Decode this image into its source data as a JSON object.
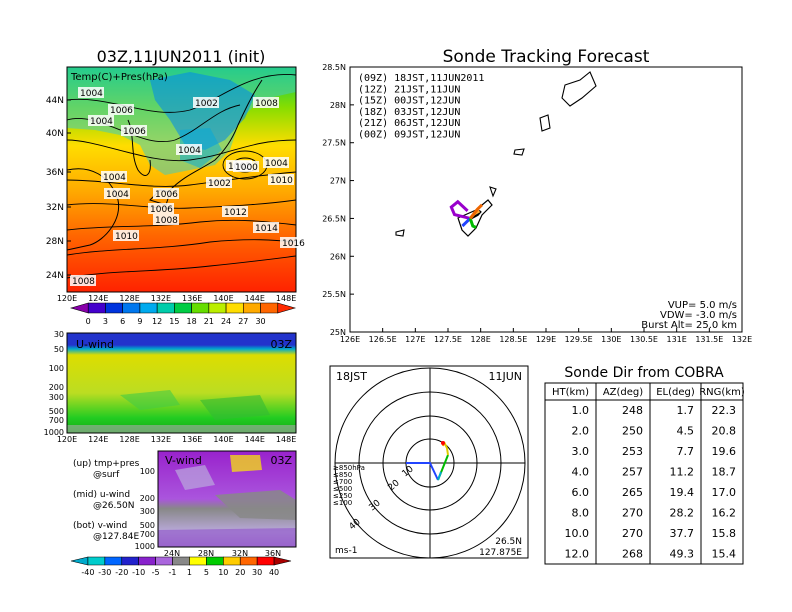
{
  "left": {
    "title": "03Z,11JUN2011 (init)",
    "top_panel": {
      "label": "Temp(C)+Pres(hPa)",
      "lat_ticks": [
        "44N",
        "40N",
        "36N",
        "32N",
        "28N",
        "24N"
      ],
      "lon_ticks": [
        "120E",
        "124E",
        "128E",
        "132E",
        "136E",
        "140E",
        "144E",
        "148E"
      ],
      "isobar_labels": [
        "1004",
        "1004",
        "1006",
        "1006",
        "1002",
        "1008",
        "1004",
        "1006",
        "1004",
        "1002",
        "1000",
        "1004",
        "1002",
        "1010",
        "1004",
        "1006",
        "1008",
        "1012",
        "1010",
        "1014",
        "1016",
        "1008"
      ],
      "colorbar_ticks": [
        "0",
        "3",
        "6",
        "9",
        "12",
        "15",
        "18",
        "21",
        "24",
        "27",
        "30"
      ],
      "colors": [
        "#8800aa",
        "#4400cc",
        "#0033dd",
        "#0077ee",
        "#00aaee",
        "#00ccaa",
        "#00cc44",
        "#66dd00",
        "#bbee00",
        "#ffdd00",
        "#ffaa00",
        "#ff6600",
        "#ff2a00"
      ]
    },
    "u_panel": {
      "label": "U-wind",
      "time": "03Z",
      "p_ticks": [
        "30",
        "50",
        "100",
        "200",
        "300",
        "500",
        "700",
        "1000"
      ],
      "lon_ticks": [
        "120E",
        "124E",
        "128E",
        "132E",
        "136E",
        "140E",
        "144E",
        "148E"
      ]
    },
    "v_panel": {
      "label": "V-wind",
      "time": "03Z",
      "p_ticks": [
        "100",
        "200",
        "300",
        "500",
        "700",
        "1000"
      ],
      "lat_ticks": [
        "24N",
        "28N",
        "32N",
        "36N"
      ]
    },
    "notes": [
      {
        "a": "(up) tmp+pres",
        "b": "@surf"
      },
      {
        "a": "(mid) u-wind",
        "b": "@26.50N"
      },
      {
        "a": "(bot) v-wind",
        "b": "@127.84E"
      }
    ],
    "wind_colorbar_ticks": [
      "-40",
      "-30",
      "-20",
      "-10",
      "-5",
      "-1",
      "1",
      "5",
      "10",
      "20",
      "30",
      "40"
    ],
    "wind_colors": [
      "#00aacc",
      "#00cccc",
      "#0066ff",
      "#2222cc",
      "#8822cc",
      "#aa66dd",
      "#888888",
      "#ffff00",
      "#00cc00",
      "#ffcc00",
      "#ff6600",
      "#ff0000",
      "#aa0000"
    ]
  },
  "track": {
    "title": "Sonde Tracking Forecast",
    "lat_ticks": [
      "28.5N",
      "28N",
      "27.5N",
      "27N",
      "26.5N",
      "26N",
      "25.5N",
      "25N"
    ],
    "lon_ticks": [
      "126E",
      "126.5E",
      "127E",
      "127.5E",
      "128E",
      "128.5E",
      "129E",
      "129.5E",
      "130E",
      "130.5E",
      "131E",
      "131.5E",
      "132E"
    ],
    "legend": [
      {
        "text": "(09Z)  18JST,11JUN2011",
        "color": "#000000"
      },
      {
        "text": "(12Z)  21JST,11JUN",
        "color": "#9900cc"
      },
      {
        "text": "(15Z)  00JST,12JUN",
        "color": "#2244ff"
      },
      {
        "text": "(18Z)  03JST,12JUN",
        "color": "#00bb00"
      },
      {
        "text": "(21Z)  06JST,12JUN",
        "color": "#ffaa33"
      },
      {
        "text": "(00Z)  09JST,12JUN",
        "color": "#ee6600"
      }
    ],
    "params": [
      "VUP=  5.0  m/s",
      "VDW= -3.0  m/s",
      "Burst Alt=  25.0  km"
    ]
  },
  "radar": {
    "time": "18JST",
    "date": "11JUN",
    "range_labels": [
      "10",
      "20",
      "30",
      "40"
    ],
    "levels": [
      {
        "text": "≥850hPa",
        "color": "#ff0000"
      },
      {
        "text": "≤850",
        "color": "#ff8800"
      },
      {
        "text": "≤700",
        "color": "#ddcc00"
      },
      {
        "text": "≤500",
        "color": "#00bb00"
      },
      {
        "text": "≤250",
        "color": "#00aacc"
      },
      {
        "text": "≤100",
        "color": "#2244ff"
      }
    ],
    "unit": "ms-1",
    "loc_lat": "26.5N",
    "loc_lon": "127.875E"
  },
  "table": {
    "title": "Sonde Dir from COBRA",
    "headers": [
      "HT(km)",
      "AZ(deg)",
      "EL(deg)",
      "RNG(km)"
    ],
    "rows": [
      [
        "1.0",
        "248",
        "1.7",
        "22.3"
      ],
      [
        "2.0",
        "250",
        "4.5",
        "20.8"
      ],
      [
        "3.0",
        "253",
        "7.7",
        "19.6"
      ],
      [
        "4.0",
        "257",
        "11.2",
        "18.7"
      ],
      [
        "6.0",
        "265",
        "19.4",
        "17.0"
      ],
      [
        "8.0",
        "270",
        "28.2",
        "16.2"
      ],
      [
        "10.0",
        "270",
        "37.7",
        "15.8"
      ],
      [
        "12.0",
        "268",
        "49.3",
        "15.4"
      ]
    ]
  },
  "chart_data": [
    {
      "type": "heatmap",
      "title": "03Z,11JUN2011 (init)",
      "label": "Temp(C)+Pres(hPa)",
      "xlim": [
        "120E",
        "150E"
      ],
      "ylim": [
        "22N",
        "48N"
      ],
      "colorbar": [
        0,
        3,
        6,
        9,
        12,
        15,
        18,
        21,
        24,
        27,
        30
      ]
    },
    {
      "type": "heatmap",
      "label": "U-wind",
      "time": "03Z",
      "y_pressure_hPa": [
        30,
        50,
        100,
        200,
        300,
        500,
        700,
        1000
      ]
    },
    {
      "type": "heatmap",
      "label": "V-wind",
      "time": "03Z",
      "y_pressure_hPa": [
        100,
        200,
        300,
        500,
        700,
        1000
      ],
      "colorbar": [
        -40,
        -30,
        -20,
        -10,
        -5,
        -1,
        1,
        5,
        10,
        20,
        30,
        40
      ]
    },
    {
      "type": "line",
      "title": "Sonde Tracking Forecast",
      "xlim": [
        126,
        132
      ],
      "ylim": [
        25,
        28.5
      ],
      "launch": {
        "lon": 127.84,
        "lat": 26.5
      },
      "series": [
        {
          "name": "(09Z)  18JST,11JUN2011",
          "x": [
            127.84,
            127.95,
            128.0
          ],
          "y": [
            26.5,
            26.55,
            26.6
          ]
        },
        {
          "name": "(12Z)  21JST,11JUN",
          "x": [
            127.84,
            127.6,
            127.55,
            127.65,
            127.8
          ],
          "y": [
            26.5,
            26.55,
            26.65,
            26.72,
            26.6
          ]
        },
        {
          "name": "(15Z)  00JST,12JUN",
          "x": [
            127.84,
            127.78,
            127.72
          ],
          "y": [
            26.5,
            26.45,
            26.4
          ]
        },
        {
          "name": "(18Z)  03JST,12JUN",
          "x": [
            127.84,
            127.88,
            127.93
          ],
          "y": [
            26.5,
            26.4,
            26.38
          ]
        },
        {
          "name": "(21Z)  06JST,12JUN",
          "x": [
            127.84,
            127.9,
            127.98
          ],
          "y": [
            26.5,
            26.56,
            26.6
          ]
        },
        {
          "name": "(00Z)  09JST,12JUN",
          "x": [
            127.84,
            127.95,
            128.02
          ],
          "y": [
            26.5,
            26.62,
            26.68
          ]
        }
      ]
    },
    {
      "type": "table",
      "title": "Sonde Dir from COBRA",
      "columns": [
        "HT(km)",
        "AZ(deg)",
        "EL(deg)",
        "RNG(km)"
      ],
      "rows": [
        [
          1.0,
          248,
          1.7,
          22.3
        ],
        [
          2.0,
          250,
          4.5,
          20.8
        ],
        [
          3.0,
          253,
          7.7,
          19.6
        ],
        [
          4.0,
          257,
          11.2,
          18.7
        ],
        [
          6.0,
          265,
          19.4,
          17.0
        ],
        [
          8.0,
          270,
          28.2,
          16.2
        ],
        [
          10.0,
          270,
          37.7,
          15.8
        ],
        [
          12.0,
          268,
          49.3,
          15.4
        ]
      ]
    }
  ]
}
